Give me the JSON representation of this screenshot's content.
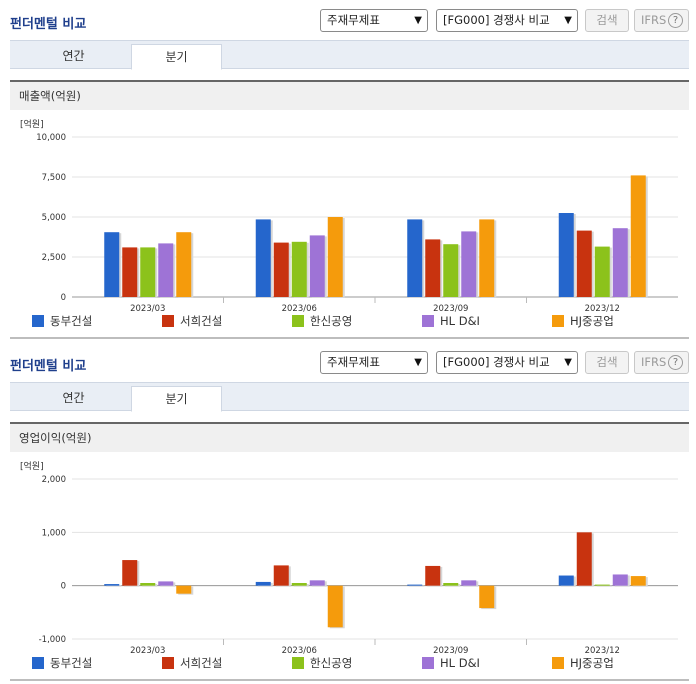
{
  "panels": [
    {
      "title": "펀더멘털 비교",
      "select_statement": "주재무제표",
      "select_compare": "[FG000] 경쟁사 비교",
      "search_label": "검색",
      "ifrs_label": "IFRS",
      "help_icon": "?",
      "tabs": [
        "연간",
        "분기"
      ],
      "active_tab": "분기",
      "subtitle": "매출액(억원)"
    },
    {
      "title": "펀더멘털 비교",
      "select_statement": "주재무제표",
      "select_compare": "[FG000] 경쟁사 비교",
      "search_label": "검색",
      "ifrs_label": "IFRS",
      "help_icon": "?",
      "tabs": [
        "연간",
        "분기"
      ],
      "active_tab": "분기",
      "subtitle": "영업이익(억원)"
    }
  ],
  "colors": [
    "#2566cc",
    "#c8330f",
    "#8cc21b",
    "#9e73d6",
    "#f59b0c"
  ],
  "chart_data": [
    {
      "type": "bar",
      "unit_label": "[억원]",
      "categories": [
        "2023/03",
        "2023/06",
        "2023/09",
        "2023/12"
      ],
      "ylim": [
        0,
        10000
      ],
      "yticks": [
        0,
        2500,
        5000,
        7500,
        10000
      ],
      "ytick_labels": [
        "0",
        "2,500",
        "5,000",
        "7,500",
        "10,000"
      ],
      "grid": true,
      "legend": "bottom",
      "series": [
        {
          "name": "동부건설",
          "values": [
            4050,
            4850,
            4850,
            5250
          ]
        },
        {
          "name": "서희건설",
          "values": [
            3100,
            3400,
            3600,
            4150
          ]
        },
        {
          "name": "한신공영",
          "values": [
            3100,
            3450,
            3300,
            3150
          ]
        },
        {
          "name": "HL D&I",
          "values": [
            3350,
            3850,
            4100,
            4300
          ]
        },
        {
          "name": "HJ중공업",
          "values": [
            4050,
            5000,
            4850,
            7600
          ]
        }
      ]
    },
    {
      "type": "bar",
      "unit_label": "[억원]",
      "categories": [
        "2023/03",
        "2023/06",
        "2023/09",
        "2023/12"
      ],
      "ylim": [
        -1000,
        2000
      ],
      "yticks": [
        -1000,
        0,
        1000,
        2000
      ],
      "ytick_labels": [
        "-1,000",
        "0",
        "1,000",
        "2,000"
      ],
      "grid": true,
      "legend": "bottom",
      "series": [
        {
          "name": "동부건설",
          "values": [
            30,
            70,
            20,
            190
          ]
        },
        {
          "name": "서희건설",
          "values": [
            480,
            380,
            370,
            1000
          ]
        },
        {
          "name": "한신공영",
          "values": [
            50,
            50,
            50,
            20
          ]
        },
        {
          "name": "HL D&I",
          "values": [
            80,
            100,
            100,
            210
          ]
        },
        {
          "name": "HJ중공업",
          "values": [
            -150,
            -780,
            -420,
            180
          ]
        }
      ]
    }
  ]
}
